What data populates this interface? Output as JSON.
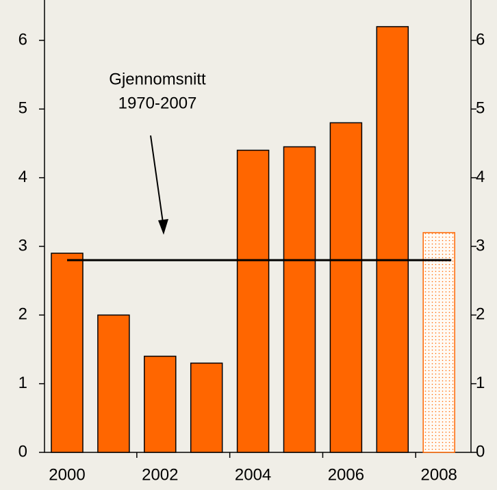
{
  "chart_data": {
    "type": "bar",
    "categories": [
      "2000",
      null,
      "2002",
      null,
      "2004",
      null,
      "2006",
      null,
      "2008"
    ],
    "values": [
      2.9,
      2.0,
      1.4,
      1.3,
      4.4,
      4.45,
      4.8,
      6.2,
      3.2
    ],
    "color": "#ff6600",
    "styles": [
      "solid",
      "solid",
      "solid",
      "solid",
      "solid",
      "solid",
      "solid",
      "solid",
      "dotted"
    ],
    "ylim": [
      0,
      6.6
    ],
    "yticks": [
      0,
      1,
      2,
      3,
      4,
      5,
      6
    ],
    "y2lim": [
      0,
      6.6
    ],
    "y2ticks": [
      0,
      1,
      2,
      3,
      4,
      5,
      6
    ],
    "reference_line": {
      "value": 2.8,
      "label": [
        "Gjennomsnitt",
        "1970-2007"
      ]
    }
  }
}
